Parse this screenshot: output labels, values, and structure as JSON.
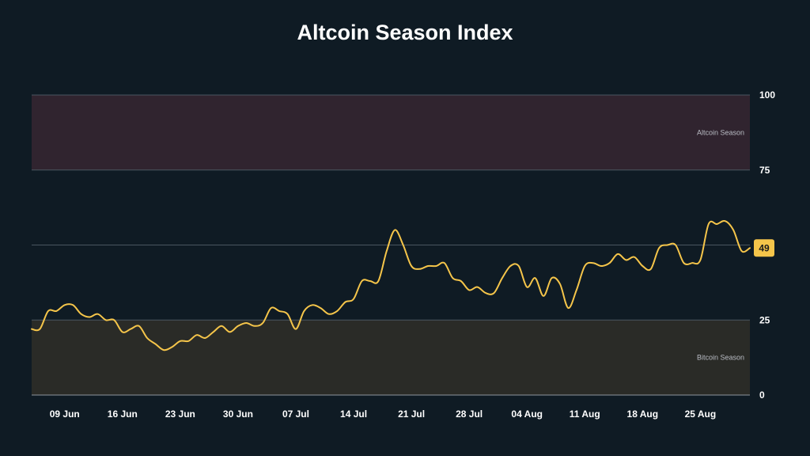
{
  "chart_data": {
    "type": "line",
    "title": "Altcoin Season Index",
    "xlabel": "",
    "ylabel": "",
    "ylim": [
      0,
      100
    ],
    "y_ticks": [
      0,
      25,
      75,
      100
    ],
    "grid_lines": [
      0,
      25,
      50,
      75,
      100
    ],
    "x_tick_labels": [
      "09 Jun",
      "16 Jun",
      "23 Jun",
      "30 Jun",
      "07 Jul",
      "14 Jul",
      "21 Jul",
      "28 Jul",
      "04 Aug",
      "11 Aug",
      "18 Aug",
      "25 Aug"
    ],
    "x_range": [
      "2024-06-05",
      "2024-08-31"
    ],
    "bands": [
      {
        "label": "Altcoin Season",
        "from": 75,
        "to": 100,
        "color": "#30242f"
      },
      {
        "label": "Bitcoin Season",
        "from": 0,
        "to": 25,
        "color": "#2a2b27"
      }
    ],
    "current_value": "49",
    "line_color": "#f5c54a",
    "series": [
      {
        "x": [
          "2024-06-05",
          "2024-06-06",
          "2024-06-07",
          "2024-06-08",
          "2024-06-09",
          "2024-06-10",
          "2024-06-11",
          "2024-06-12",
          "2024-06-13",
          "2024-06-14",
          "2024-06-15",
          "2024-06-16",
          "2024-06-17",
          "2024-06-18",
          "2024-06-19",
          "2024-06-20",
          "2024-06-21",
          "2024-06-22",
          "2024-06-23",
          "2024-06-24",
          "2024-06-25",
          "2024-06-26",
          "2024-06-27",
          "2024-06-28",
          "2024-06-29",
          "2024-06-30",
          "2024-07-01",
          "2024-07-02",
          "2024-07-03",
          "2024-07-04",
          "2024-07-05",
          "2024-07-06",
          "2024-07-07",
          "2024-07-08",
          "2024-07-09",
          "2024-07-10",
          "2024-07-11",
          "2024-07-12",
          "2024-07-13",
          "2024-07-14",
          "2024-07-15",
          "2024-07-16",
          "2024-07-17",
          "2024-07-18",
          "2024-07-19",
          "2024-07-20",
          "2024-07-21",
          "2024-07-22",
          "2024-07-23",
          "2024-07-24",
          "2024-07-25",
          "2024-07-26",
          "2024-07-27",
          "2024-07-28",
          "2024-07-29",
          "2024-07-30",
          "2024-07-31",
          "2024-08-01",
          "2024-08-02",
          "2024-08-03",
          "2024-08-04",
          "2024-08-05",
          "2024-08-06",
          "2024-08-07",
          "2024-08-08",
          "2024-08-09",
          "2024-08-10",
          "2024-08-11",
          "2024-08-12",
          "2024-08-13",
          "2024-08-14",
          "2024-08-15",
          "2024-08-16",
          "2024-08-17",
          "2024-08-18",
          "2024-08-19",
          "2024-08-20",
          "2024-08-21",
          "2024-08-22",
          "2024-08-23",
          "2024-08-24",
          "2024-08-25",
          "2024-08-26",
          "2024-08-27",
          "2024-08-28",
          "2024-08-29",
          "2024-08-30",
          "2024-08-31"
        ],
        "values": [
          22,
          22,
          28,
          28,
          30,
          30,
          27,
          26,
          27,
          25,
          25,
          21,
          22,
          23,
          19,
          17,
          15,
          16,
          18,
          18,
          20,
          19,
          21,
          23,
          21,
          23,
          24,
          23,
          24,
          29,
          28,
          27,
          22,
          28,
          30,
          29,
          27,
          28,
          31,
          32,
          38,
          38,
          38,
          48,
          55,
          50,
          43,
          42,
          43,
          43,
          44,
          39,
          38,
          35,
          36,
          34,
          34,
          39,
          43,
          43,
          36,
          39,
          33,
          39,
          37,
          29,
          35,
          43,
          44,
          43,
          44,
          47,
          45,
          46,
          43,
          42,
          49,
          50,
          50,
          44,
          44,
          45,
          57,
          57,
          58,
          55,
          48,
          49
        ]
      }
    ]
  }
}
